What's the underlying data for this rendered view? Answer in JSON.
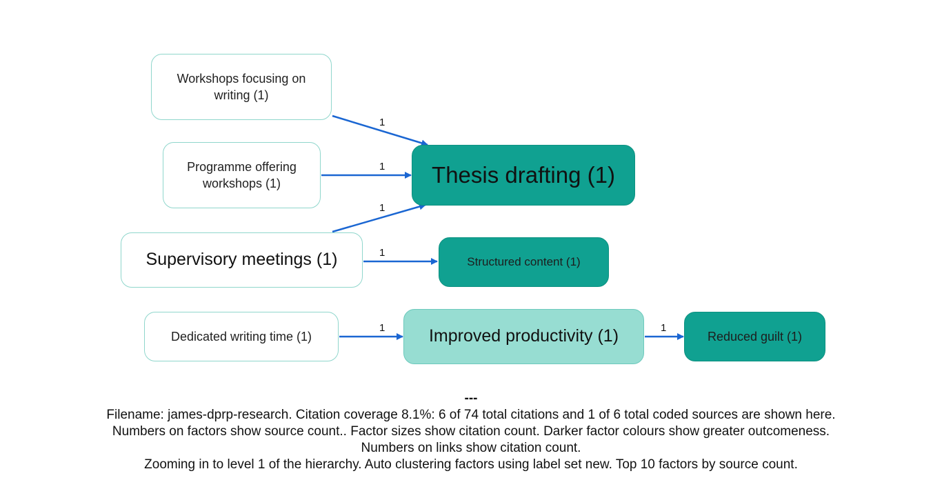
{
  "nodes": {
    "workshops_writing": "Workshops focusing on writing (1)",
    "programme_workshops": "Programme offering workshops (1)",
    "thesis_drafting": "Thesis drafting (1)",
    "supervisory_meetings": "Supervisory meetings (1)",
    "structured_content": "Structured content (1)",
    "dedicated_writing_time": "Dedicated writing time (1)",
    "improved_productivity": "Improved productivity (1)",
    "reduced_guilt": "Reduced guilt (1)"
  },
  "edges": [
    {
      "from": "Workshops focusing on writing (1)",
      "to": "Thesis drafting (1)",
      "label": "1"
    },
    {
      "from": "Programme offering workshops (1)",
      "to": "Thesis drafting (1)",
      "label": "1"
    },
    {
      "from": "Supervisory meetings (1)",
      "to": "Thesis drafting (1)",
      "label": "1"
    },
    {
      "from": "Supervisory meetings (1)",
      "to": "Structured content (1)",
      "label": "1"
    },
    {
      "from": "Dedicated writing time (1)",
      "to": "Improved productivity (1)",
      "label": "1"
    },
    {
      "from": "Improved productivity (1)",
      "to": "Reduced guilt (1)",
      "label": "1"
    }
  ],
  "colors": {
    "edge": "#1a66d2",
    "node_light_fill": "#ffffff",
    "node_light_border": "#8fd6cc",
    "node_mid_fill": "#97ddd2",
    "node_dark_fill": "#10a191"
  },
  "footer": {
    "separator": "---",
    "line1": "Filename: james-dprp-research. Citation coverage 8.1%: 6 of 74 total citations and 1 of 6 total coded sources are shown here.",
    "line2": "Numbers on factors show source count.. Factor sizes show citation count. Darker factor colours show greater outcomeness.",
    "line3": "Numbers on links show citation count.",
    "line4": "Zooming in to level 1 of the hierarchy. Auto clustering factors using label set new. Top 10 factors by source count."
  }
}
